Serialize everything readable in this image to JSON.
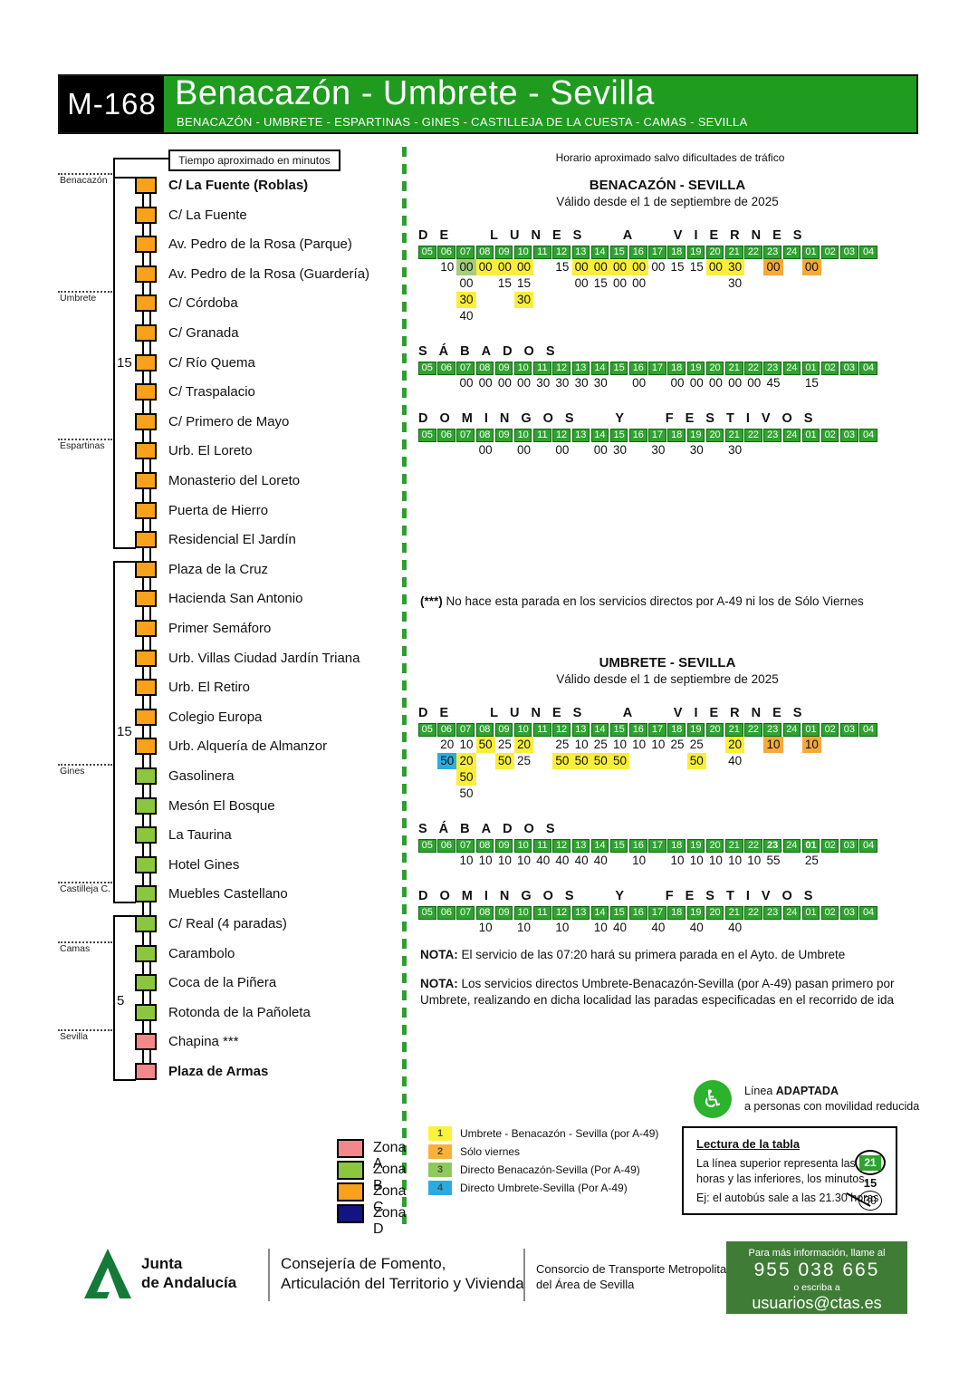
{
  "header": {
    "line_code": "M-168",
    "title": "Benacazón - Umbrete - Sevilla",
    "subtitle": "BENACAZÓN - UMBRETE - ESPARTINAS - GINES - CASTILLEJA DE LA CUESTA - CAMAS - SEVILLA"
  },
  "subheader": {
    "box_label": "Tiempo aproximado en minutos",
    "right_note": "Horario aproximado salvo dificultades de tráfico"
  },
  "colors": {
    "banner_green": "#1F9B1F",
    "hour_green": "#2FA32F",
    "hour_border": "#0E680E",
    "hl_yellow": "#F9EE3B",
    "hl_orange": "#F4A93C",
    "hl_green": "#A6CC7C",
    "hl_blue": "#2FABE1",
    "zone_A": "#F4878B",
    "zone_B": "#8CC63F",
    "zone_C": "#F9A11B",
    "zone_D": "#131483",
    "divider_green": "#2F9E2F",
    "footer_green": "#3F7D36",
    "logo_green": "#157A38",
    "adapted_green": "#2CB22C"
  },
  "route": {
    "municipalities": [
      {
        "name": "Benacazón",
        "stop_index": 0
      },
      {
        "name": "Umbrete",
        "stop_index": 4
      },
      {
        "name": "Espartinas",
        "stop_index": 9
      },
      {
        "name": "Gines",
        "stop_index": 20
      },
      {
        "name": "Castilleja C.",
        "stop_index": 24
      },
      {
        "name": "Camas",
        "stop_index": 26
      },
      {
        "name": "Sevilla",
        "stop_index": 29
      }
    ],
    "stops": [
      {
        "name": "C/ La Fuente (Roblas)",
        "zone": "C",
        "bold": true
      },
      {
        "name": "C/ La Fuente",
        "zone": "C"
      },
      {
        "name": "Av. Pedro de la Rosa (Parque)",
        "zone": "C"
      },
      {
        "name": "Av. Pedro de la Rosa (Guardería)",
        "zone": "C"
      },
      {
        "name": "C/ Córdoba",
        "zone": "C"
      },
      {
        "name": "C/ Granada",
        "zone": "C"
      },
      {
        "name": "C/ Río Quema",
        "zone": "C"
      },
      {
        "name": "C/ Traspalacio",
        "zone": "C"
      },
      {
        "name": "C/ Primero de Mayo",
        "zone": "C"
      },
      {
        "name": "Urb. El Loreto",
        "zone": "C"
      },
      {
        "name": "Monasterio del Loreto",
        "zone": "C"
      },
      {
        "name": "Puerta de Hierro",
        "zone": "C"
      },
      {
        "name": "Residencial El Jardín",
        "zone": "C"
      },
      {
        "name": "Plaza de la Cruz",
        "zone": "C"
      },
      {
        "name": "Hacienda San Antonio",
        "zone": "C"
      },
      {
        "name": "Primer Semáforo",
        "zone": "C"
      },
      {
        "name": "Urb. Villas Ciudad Jardín Triana",
        "zone": "C"
      },
      {
        "name": "Urb. El Retiro",
        "zone": "C"
      },
      {
        "name": "Colegio Europa",
        "zone": "C"
      },
      {
        "name": "Urb. Alquería de Almanzor",
        "zone": "C"
      },
      {
        "name": "Gasolinera",
        "zone": "B"
      },
      {
        "name": "Mesón El Bosque",
        "zone": "B"
      },
      {
        "name": "La Taurina",
        "zone": "B"
      },
      {
        "name": "Hotel Gines",
        "zone": "B"
      },
      {
        "name": "Muebles Castellano",
        "zone": "B"
      },
      {
        "name": "C/ Real (4 paradas)",
        "zone": "B"
      },
      {
        "name": "Carambolo",
        "zone": "B"
      },
      {
        "name": "Coca de la Piñera",
        "zone": "B"
      },
      {
        "name": "Rotonda de la Pañoleta",
        "zone": "B"
      },
      {
        "name": "Chapina ***",
        "zone": "A"
      },
      {
        "name": "Plaza de Armas",
        "zone": "A",
        "bold": true
      }
    ],
    "brackets": [
      {
        "label": "15",
        "from": 0,
        "to": 12,
        "label_at": 6
      },
      {
        "label": "15",
        "from": 13,
        "to": 24,
        "label_at": 18.5
      },
      {
        "label": "5",
        "from": 25,
        "to": 30,
        "label_at": 27.6
      }
    ]
  },
  "hours": [
    "05",
    "06",
    "07",
    "08",
    "09",
    "10",
    "11",
    "12",
    "13",
    "14",
    "15",
    "16",
    "17",
    "18",
    "19",
    "20",
    "21",
    "22",
    "23",
    "24",
    "01",
    "02",
    "03",
    "04"
  ],
  "timetables": [
    {
      "title": "BENACAZÓN - SEVILLA",
      "valid": "Válido desde el 1 de septiembre de 2025",
      "blocks": [
        {
          "day": "DE LUNES A VIERNES",
          "rows": [
            [
              "",
              "10",
              "00|g",
              "00|y",
              "00|y",
              "00|y",
              "",
              "15",
              "00|y",
              "00|y",
              "00|y",
              "00|y",
              "00",
              "15",
              "15",
              "00|y",
              "30|y",
              "",
              "00|o",
              "",
              "00|o",
              "",
              "",
              ""
            ],
            [
              "",
              "",
              "00",
              "",
              "15",
              "15",
              "",
              "",
              "00",
              "15",
              "00",
              "00",
              "",
              "",
              "",
              "",
              "30",
              "",
              "",
              "",
              "",
              "",
              "",
              ""
            ],
            [
              "",
              "",
              "30|y",
              "",
              "",
              "30|y",
              "",
              "",
              "",
              "",
              "",
              "",
              "",
              "",
              "",
              "",
              "",
              "",
              "",
              "",
              "",
              "",
              "",
              ""
            ],
            [
              "",
              "",
              "40",
              "",
              "",
              "",
              "",
              "",
              "",
              "",
              "",
              "",
              "",
              "",
              "",
              "",
              "",
              "",
              "",
              "",
              "",
              "",
              "",
              ""
            ]
          ]
        },
        {
          "day": "SÁBADOS",
          "rows": [
            [
              "",
              "",
              "00",
              "00",
              "00",
              "00",
              "30",
              "30",
              "30",
              "30",
              "",
              "00",
              "",
              "00",
              "00",
              "00",
              "00",
              "00",
              "45",
              "",
              "15",
              "",
              "",
              ""
            ]
          ]
        },
        {
          "day": "DOMINGOS Y FESTIVOS",
          "rows": [
            [
              "",
              "",
              "",
              "00",
              "",
              "00",
              "",
              "00",
              "",
              "00",
              "30",
              "",
              "30",
              "",
              "30",
              "",
              "30",
              "",
              "",
              "",
              "",
              "",
              "",
              ""
            ]
          ]
        }
      ]
    },
    {
      "title": "UMBRETE - SEVILLA",
      "valid": "Válido desde el 1 de septiembre de 2025",
      "blocks": [
        {
          "day": "DE LUNES A VIERNES",
          "rows": [
            [
              "",
              "20",
              "10",
              "50|y",
              "25",
              "20|y",
              "",
              "25",
              "10",
              "25",
              "10",
              "10",
              "10",
              "25",
              "25",
              "",
              "20|y",
              "",
              "10|o",
              "",
              "10|o",
              "",
              "",
              ""
            ],
            [
              "",
              "50|b",
              "20|y",
              "",
              "50|y",
              "25",
              "",
              "50|y",
              "50|y",
              "50|y",
              "50|y",
              "",
              "",
              "",
              "50|y",
              "",
              "40",
              "",
              "",
              "",
              "",
              "",
              "",
              ""
            ],
            [
              "",
              "",
              "50|y",
              "",
              "",
              "",
              "",
              "",
              "",
              "",
              "",
              "",
              "",
              "",
              "",
              "",
              "",
              "",
              "",
              "",
              "",
              "",
              "",
              ""
            ],
            [
              "",
              "",
              "50",
              "",
              "",
              "",
              "",
              "",
              "",
              "",
              "",
              "",
              "",
              "",
              "",
              "",
              "",
              "",
              "",
              "",
              "",
              "",
              "",
              ""
            ]
          ]
        },
        {
          "day": "SÁBADOS",
          "bold_hours": [
            "23",
            "01"
          ],
          "rows": [
            [
              "",
              "",
              "10",
              "10",
              "10",
              "10",
              "40",
              "40",
              "40",
              "40",
              "",
              "10",
              "",
              "10",
              "10",
              "10",
              "10",
              "10",
              "55",
              "",
              "25",
              "",
              "",
              ""
            ]
          ]
        },
        {
          "day": "DOMINGOS Y FESTIVOS",
          "rows": [
            [
              "",
              "",
              "",
              "10",
              "",
              "10",
              "",
              "10",
              "",
              "10",
              "40",
              "",
              "40",
              "",
              "40",
              "",
              "40",
              "",
              "",
              "",
              "",
              "",
              "",
              ""
            ]
          ]
        }
      ]
    }
  ],
  "star_note": {
    "label": "(***)",
    "text": "No hace esta parada en los servicios directos por A-49 ni los de Sólo Viernes"
  },
  "notes": [
    {
      "label": "NOTA:",
      "text": "El servicio de las 07:20 hará su primera parada en el Ayto. de Umbrete"
    },
    {
      "label": "NOTA:",
      "text": "Los servicios directos Umbrete-Benacazón-Sevilla (por A-49) pasan primero por Umbrete, realizando en dicha localidad las paradas especificadas en el recorrido de ida"
    }
  ],
  "legend_zones": [
    {
      "label": "Zona A",
      "zone": "A"
    },
    {
      "label": "Zona B",
      "zone": "B"
    },
    {
      "label": "Zona C",
      "zone": "C"
    },
    {
      "label": "Zona D",
      "zone": "D"
    }
  ],
  "legend_services": [
    {
      "num": "1",
      "color": "#FDF23B",
      "label": "Umbrete - Benacazón - Sevilla (por A-49)"
    },
    {
      "num": "2",
      "color": "#FBB03B",
      "label": "Sólo viernes"
    },
    {
      "num": "3",
      "color": "#8FC95B",
      "label": "Directo Benacazón-Sevilla (Por A-49)"
    },
    {
      "num": "4",
      "color": "#29ABE2",
      "label": "Directo Umbrete-Sevilla (Por A-49)"
    }
  ],
  "adapted": {
    "pre": "Línea",
    "strong": "ADAPTADA",
    "line2": "a personas con movilidad reducida"
  },
  "lectura": {
    "title": "Lectura de la tabla",
    "lines": [
      "La línea superior representa las",
      "horas y las inferiores, los minutos.",
      "Ej: el autobús sale a las 21.30 horas"
    ],
    "example": {
      "hour": "21",
      "minute1": "15",
      "minute2": "30"
    }
  },
  "footer": {
    "junta": [
      "Junta",
      "de Andalucía"
    ],
    "consejeria": [
      "Consejería de Fomento,",
      "Articulación del Territorio y Vivienda"
    ],
    "consorcio": [
      "Consorcio de Transporte Metropolitano",
      "del Área de Sevilla"
    ],
    "contact": [
      "Para más información, llame al",
      "955 038 665",
      "o escriba a",
      "usuarios@ctas.es"
    ]
  }
}
